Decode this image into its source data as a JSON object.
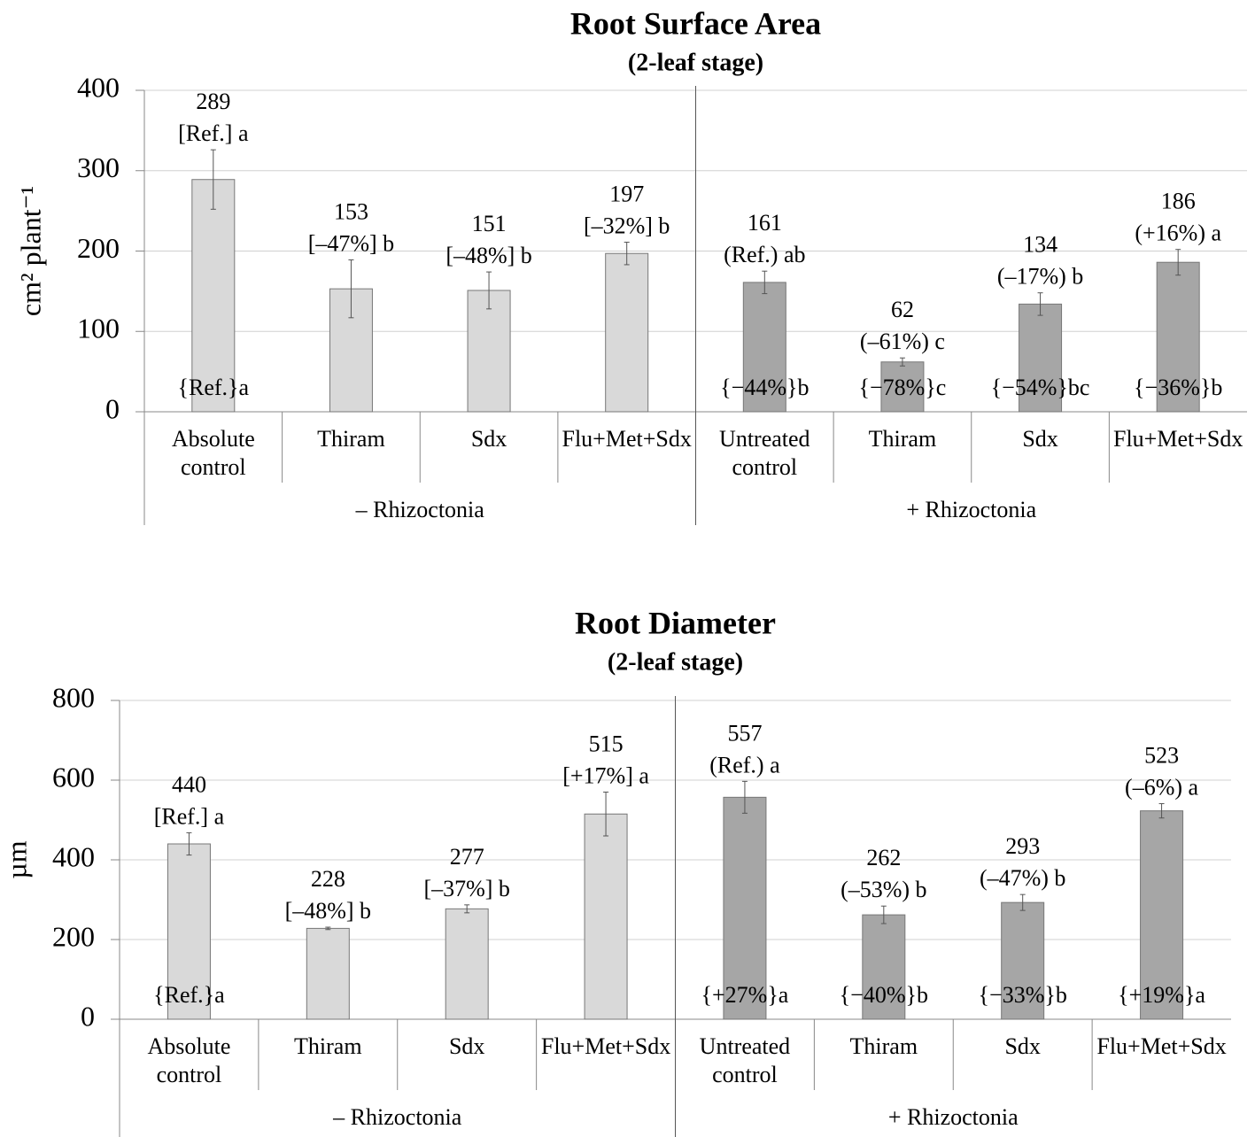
{
  "chart_data": [
    {
      "type": "bar",
      "title": "Root Surface Area",
      "subtitle": "(2-leaf stage)",
      "y_label": "cm² plant⁻¹",
      "categories": [
        "Absolute control",
        "Thiram",
        "Sdx",
        "Flu+Met+Sdx",
        "Untreated control",
        "Thiram",
        "Sdx",
        "Flu+Met+Sdx"
      ],
      "series": [
        {
          "name": "– Rhizoctonia",
          "color": "#d9d9d9",
          "values": [
            289,
            153,
            151,
            197,
            null,
            null,
            null,
            null
          ],
          "errors": [
            37,
            36,
            23,
            14,
            null,
            null,
            null,
            null
          ],
          "annotations": [
            "[Ref.] a",
            "[–47%] b",
            "[–48%] b",
            "[–32%] b",
            null,
            null,
            null,
            null
          ],
          "bottom_labels": [
            "{Ref.}a",
            null,
            null,
            null,
            null,
            null,
            null,
            null
          ]
        },
        {
          "name": "+ Rhizoctonia",
          "color": "#a6a6a6",
          "values": [
            null,
            null,
            null,
            null,
            161,
            62,
            134,
            186
          ],
          "errors": [
            null,
            null,
            null,
            null,
            14,
            5,
            14,
            16
          ],
          "annotations": [
            null,
            null,
            null,
            null,
            "(Ref.) ab",
            "(–61%) c",
            "(–17%) b",
            "(+16%) a"
          ],
          "bottom_labels": [
            null,
            null,
            null,
            null,
            "{−44%}b",
            "{−78%}c",
            "{−54%}bc",
            "{−36%}b"
          ]
        }
      ],
      "ylim": [
        0,
        400
      ],
      "yticks": [
        0,
        100,
        200,
        300,
        400
      ],
      "grid": true
    },
    {
      "type": "bar",
      "title": "Root Diameter",
      "subtitle": "(2-leaf  stage)",
      "y_label": "µm",
      "categories": [
        "Absolute control",
        "Thiram",
        "Sdx",
        "Flu+Met+Sdx",
        "Untreated control",
        "Thiram",
        "Sdx",
        "Flu+Met+Sdx"
      ],
      "series": [
        {
          "name": "– Rhizoctonia",
          "color": "#d9d9d9",
          "values": [
            440,
            228,
            277,
            515,
            null,
            null,
            null,
            null
          ],
          "errors": [
            28,
            3,
            10,
            55,
            null,
            null,
            null,
            null
          ],
          "annotations": [
            "[Ref.] a",
            "[–48%] b",
            "[–37%] b",
            "[+17%] a",
            null,
            null,
            null,
            null
          ],
          "bottom_labels": [
            "{Ref.}a",
            null,
            null,
            null,
            null,
            null,
            null,
            null
          ]
        },
        {
          "name": "+ Rhizoctonia",
          "color": "#a6a6a6",
          "values": [
            null,
            null,
            null,
            null,
            557,
            262,
            293,
            523
          ],
          "errors": [
            null,
            null,
            null,
            null,
            40,
            22,
            20,
            18
          ],
          "annotations": [
            null,
            null,
            null,
            null,
            "(Ref.) a",
            "(–53%) b",
            "(–47%) b",
            "(–6%) a"
          ],
          "bottom_labels": [
            null,
            null,
            null,
            null,
            "{+27%}a",
            "{−40%}b",
            "{−33%}b",
            "{+19%}a"
          ]
        }
      ],
      "ylim": [
        0,
        800
      ],
      "yticks": [
        0,
        200,
        400,
        600,
        800
      ],
      "grid": true
    }
  ]
}
